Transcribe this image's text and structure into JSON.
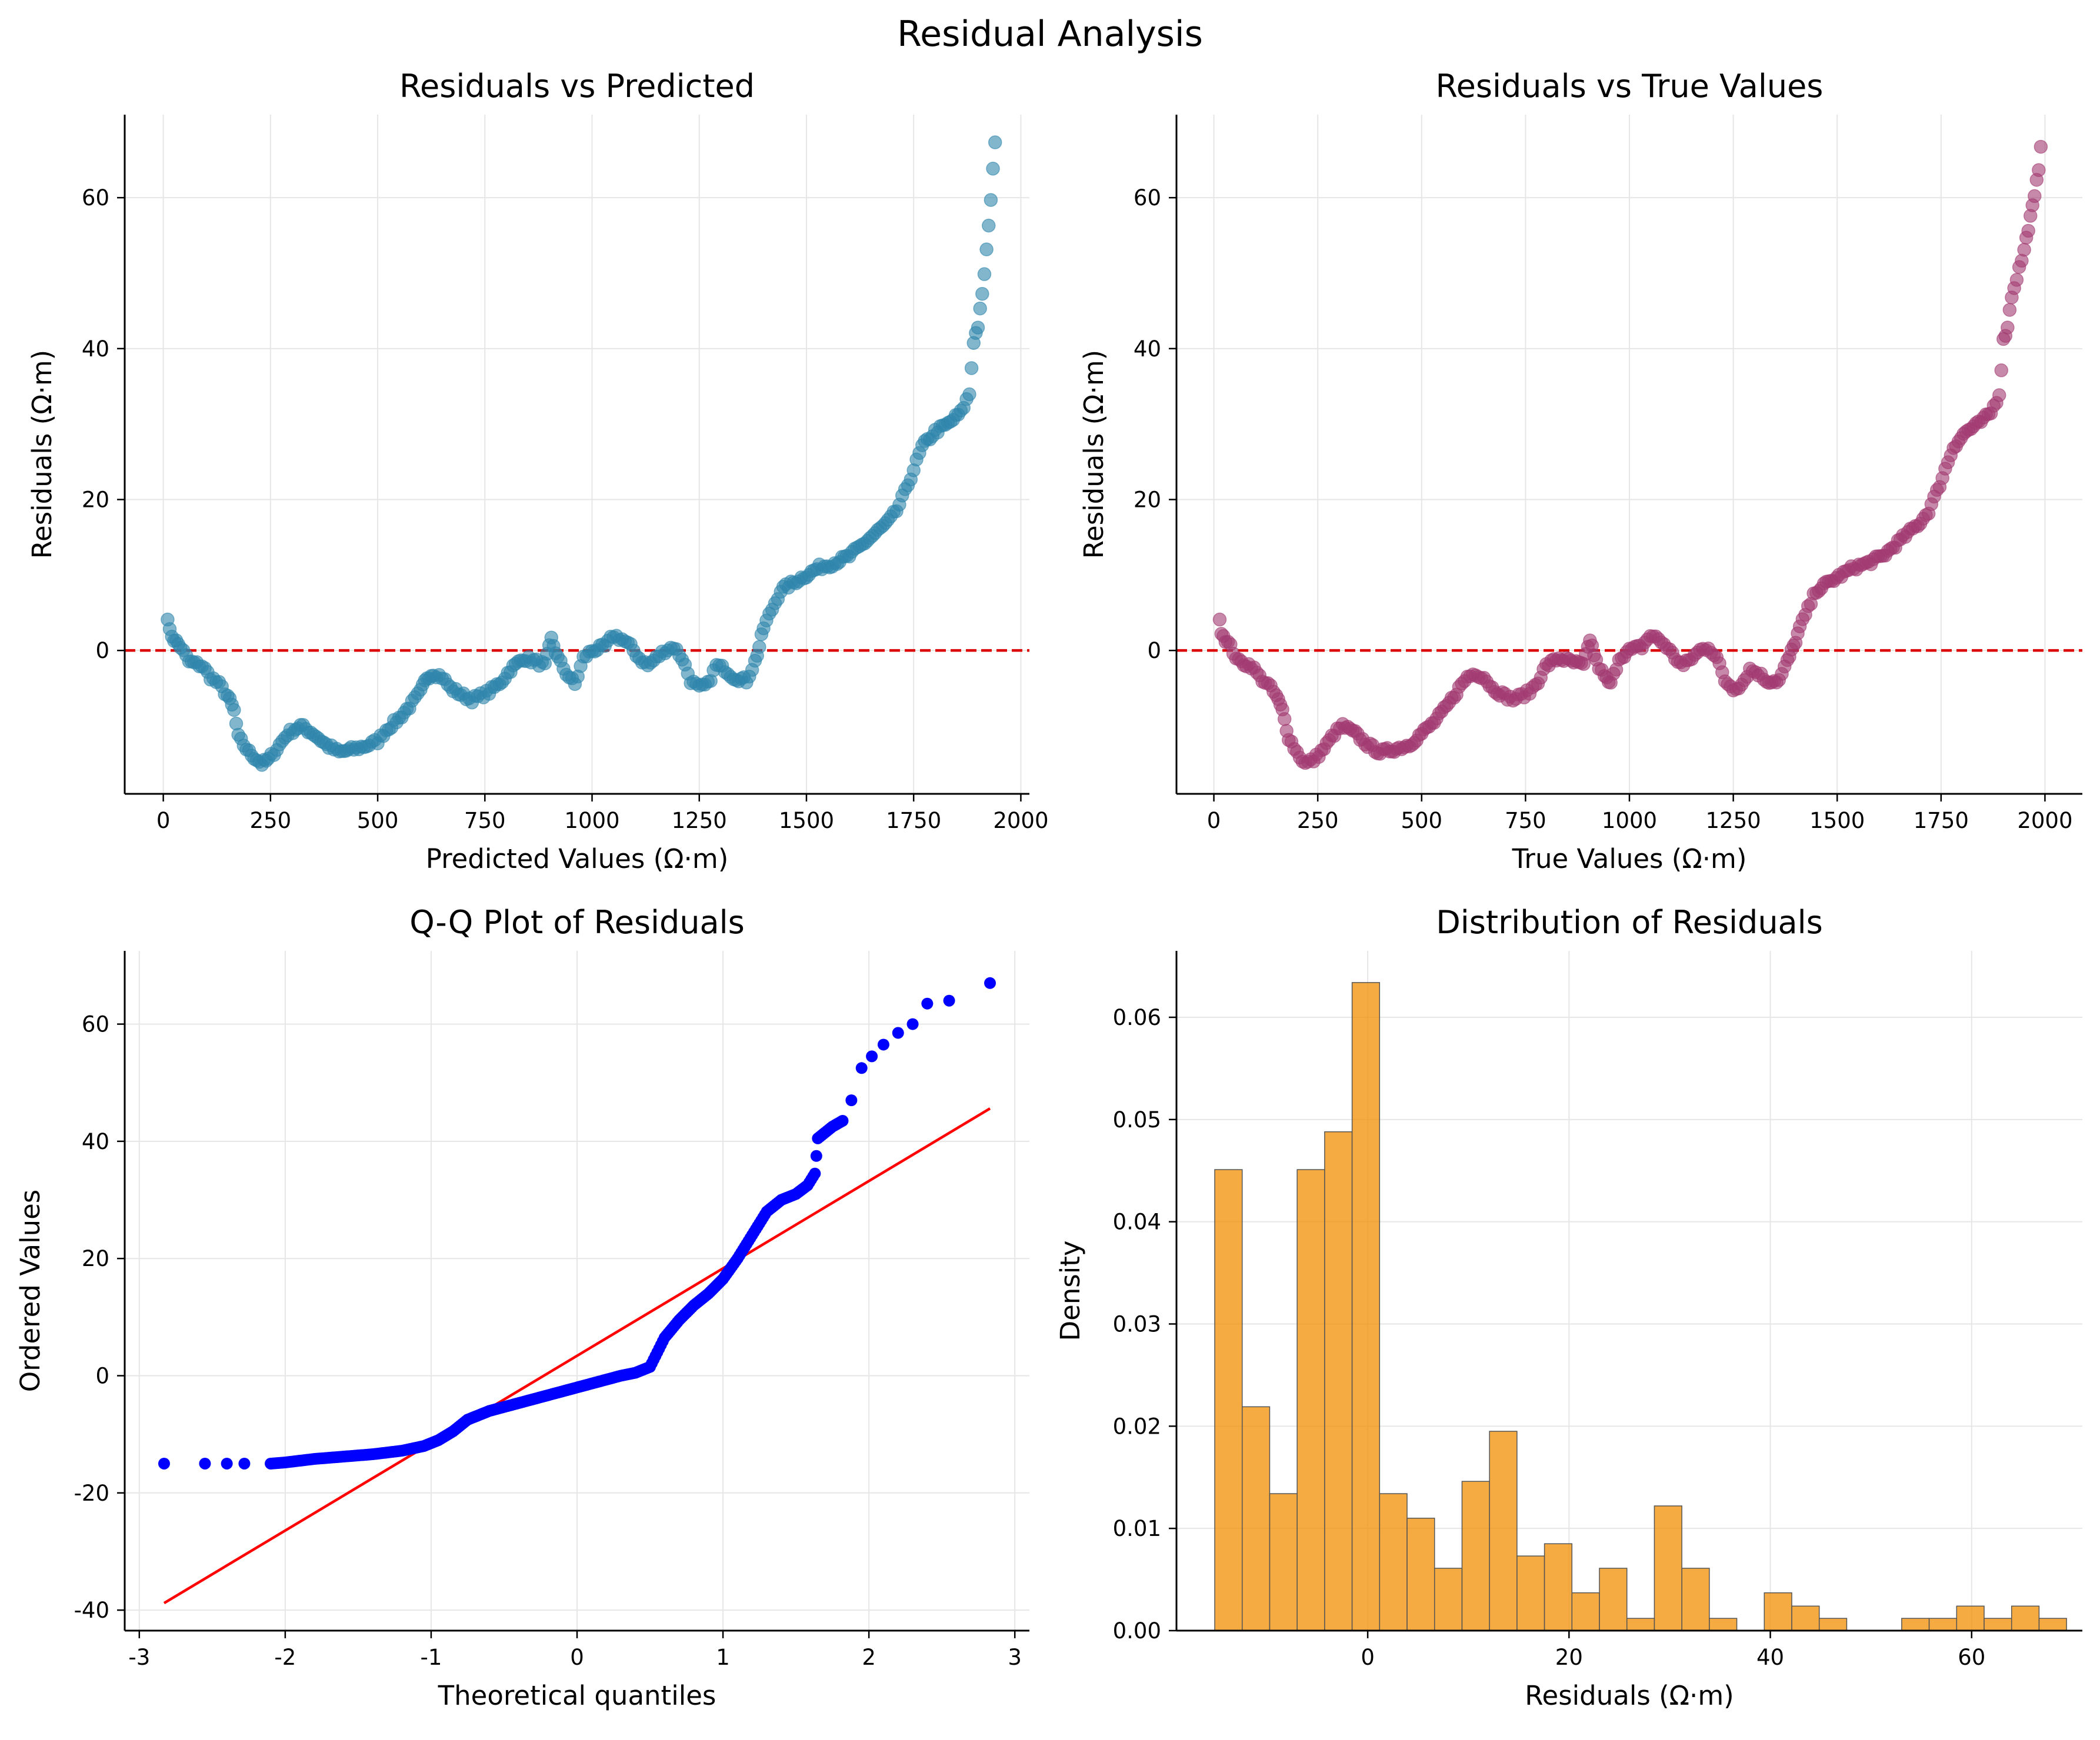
{
  "figure": {
    "title": "Residual Analysis"
  },
  "colors": {
    "scatter_pred": "#2e86ab",
    "scatter_true": "#a23b72",
    "qq_points": "#0000ff",
    "qq_line": "#ff0000",
    "hist": "#f18f01",
    "zero_line": "#dd0000"
  },
  "chart_data": [
    {
      "id": "pred",
      "type": "scatter",
      "title": "Residuals vs Predicted",
      "xlabel": "Predicted Values (Ω·m)",
      "ylabel": "Residuals (Ω·m)",
      "xlim": [
        -90,
        2020
      ],
      "ylim": [
        -19,
        71
      ],
      "xticks": [
        0,
        250,
        500,
        750,
        1000,
        1250,
        1500,
        1750,
        2000
      ],
      "yticks": [
        0,
        20,
        40,
        60
      ],
      "grid": true,
      "reference_line": {
        "y": 0,
        "style": "dashed"
      },
      "curve": [
        [
          10,
          4.5
        ],
        [
          15,
          2.5
        ],
        [
          25,
          1.5
        ],
        [
          40,
          0.5
        ],
        [
          60,
          -1.5
        ],
        [
          90,
          -2
        ],
        [
          110,
          -3.5
        ],
        [
          130,
          -4.5
        ],
        [
          150,
          -6
        ],
        [
          165,
          -8
        ],
        [
          175,
          -11.5
        ],
        [
          200,
          -13.5
        ],
        [
          230,
          -15
        ],
        [
          245,
          -14.5
        ],
        [
          265,
          -13
        ],
        [
          290,
          -11
        ],
        [
          320,
          -10
        ],
        [
          350,
          -11
        ],
        [
          380,
          -12.5
        ],
        [
          410,
          -13.5
        ],
        [
          450,
          -13
        ],
        [
          480,
          -12.5
        ],
        [
          500,
          -12
        ],
        [
          520,
          -10.5
        ],
        [
          550,
          -9
        ],
        [
          580,
          -7
        ],
        [
          600,
          -5.5
        ],
        [
          615,
          -3.5
        ],
        [
          630,
          -3
        ],
        [
          650,
          -3.5
        ],
        [
          670,
          -5
        ],
        [
          700,
          -6
        ],
        [
          720,
          -6.5
        ],
        [
          740,
          -6
        ],
        [
          760,
          -5.5
        ],
        [
          790,
          -4
        ],
        [
          810,
          -2.5
        ],
        [
          840,
          -1
        ],
        [
          870,
          -1.5
        ],
        [
          890,
          -2
        ],
        [
          905,
          1.5
        ],
        [
          920,
          -1
        ],
        [
          940,
          -3
        ],
        [
          960,
          -4.5
        ],
        [
          980,
          -1
        ],
        [
          1000,
          0
        ],
        [
          1030,
          0.5
        ],
        [
          1050,
          2
        ],
        [
          1070,
          1.5
        ],
        [
          1090,
          0.5
        ],
        [
          1110,
          -1
        ],
        [
          1130,
          -2
        ],
        [
          1150,
          -1
        ],
        [
          1170,
          0
        ],
        [
          1190,
          0.5
        ],
        [
          1210,
          -1
        ],
        [
          1230,
          -4
        ],
        [
          1250,
          -5
        ],
        [
          1270,
          -4.5
        ],
        [
          1290,
          -2
        ],
        [
          1310,
          -2.5
        ],
        [
          1330,
          -3.5
        ],
        [
          1360,
          -4
        ],
        [
          1380,
          -1.5
        ],
        [
          1390,
          0.5
        ],
        [
          1400,
          3
        ],
        [
          1420,
          5.5
        ],
        [
          1440,
          8
        ],
        [
          1470,
          9
        ],
        [
          1500,
          10
        ],
        [
          1530,
          11
        ],
        [
          1560,
          11.5
        ],
        [
          1600,
          12.5
        ],
        [
          1630,
          14
        ],
        [
          1660,
          15.5
        ],
        [
          1690,
          17
        ],
        [
          1710,
          18.5
        ],
        [
          1730,
          21
        ],
        [
          1750,
          24
        ],
        [
          1770,
          27
        ],
        [
          1800,
          29
        ],
        [
          1830,
          30
        ],
        [
          1860,
          31.5
        ],
        [
          1880,
          34
        ],
        [
          1890,
          41
        ],
        [
          1900,
          43
        ],
        [
          1910,
          47
        ],
        [
          1920,
          53
        ],
        [
          1925,
          56
        ],
        [
          1930,
          60
        ],
        [
          1935,
          64
        ],
        [
          1940,
          67
        ]
      ],
      "note": "Scatter approximated as a dense sampling of the visible point cloud"
    },
    {
      "id": "true",
      "type": "scatter",
      "title": "Residuals vs True Values",
      "xlabel": "True Values (Ω·m)",
      "ylabel": "Residuals (Ω·m)",
      "xlim": [
        -90,
        2090
      ],
      "ylim": [
        -19,
        71
      ],
      "xticks": [
        0,
        250,
        500,
        750,
        1000,
        1250,
        1500,
        1750,
        2000
      ],
      "yticks": [
        0,
        20,
        40,
        60
      ],
      "grid": true,
      "reference_line": {
        "y": 0,
        "style": "dashed"
      },
      "curve": [
        [
          14,
          4.5
        ],
        [
          18,
          2.5
        ],
        [
          28,
          1.5
        ],
        [
          40,
          0.5
        ],
        [
          60,
          -1.5
        ],
        [
          90,
          -2
        ],
        [
          110,
          -3.5
        ],
        [
          130,
          -4.5
        ],
        [
          150,
          -6
        ],
        [
          165,
          -8
        ],
        [
          180,
          -11.5
        ],
        [
          200,
          -13.5
        ],
        [
          220,
          -15
        ],
        [
          240,
          -14.5
        ],
        [
          265,
          -13
        ],
        [
          290,
          -11
        ],
        [
          310,
          -10
        ],
        [
          340,
          -11
        ],
        [
          370,
          -12.5
        ],
        [
          400,
          -13.5
        ],
        [
          440,
          -13
        ],
        [
          470,
          -12.5
        ],
        [
          500,
          -11
        ],
        [
          530,
          -9.5
        ],
        [
          560,
          -7.5
        ],
        [
          590,
          -5
        ],
        [
          610,
          -3.5
        ],
        [
          630,
          -3
        ],
        [
          650,
          -3.5
        ],
        [
          670,
          -5
        ],
        [
          700,
          -6
        ],
        [
          720,
          -6.5
        ],
        [
          740,
          -6
        ],
        [
          760,
          -5.5
        ],
        [
          780,
          -4
        ],
        [
          800,
          -2
        ],
        [
          830,
          -1
        ],
        [
          860,
          -1.5
        ],
        [
          890,
          -2
        ],
        [
          905,
          1.5
        ],
        [
          920,
          -1.5
        ],
        [
          940,
          -3.5
        ],
        [
          955,
          -4.5
        ],
        [
          975,
          -1
        ],
        [
          1000,
          0
        ],
        [
          1030,
          0.5
        ],
        [
          1050,
          2
        ],
        [
          1070,
          1.5
        ],
        [
          1090,
          0.5
        ],
        [
          1110,
          -1
        ],
        [
          1130,
          -2
        ],
        [
          1150,
          -1
        ],
        [
          1170,
          0
        ],
        [
          1190,
          0.5
        ],
        [
          1210,
          -1
        ],
        [
          1230,
          -4
        ],
        [
          1250,
          -5
        ],
        [
          1270,
          -4.5
        ],
        [
          1290,
          -2.5
        ],
        [
          1310,
          -3
        ],
        [
          1330,
          -4
        ],
        [
          1360,
          -4
        ],
        [
          1380,
          -1.5
        ],
        [
          1395,
          0.5
        ],
        [
          1410,
          3
        ],
        [
          1430,
          5.5
        ],
        [
          1450,
          8
        ],
        [
          1480,
          9
        ],
        [
          1510,
          10
        ],
        [
          1540,
          11
        ],
        [
          1570,
          11.5
        ],
        [
          1610,
          12.5
        ],
        [
          1640,
          14
        ],
        [
          1670,
          15.5
        ],
        [
          1700,
          17
        ],
        [
          1720,
          18.5
        ],
        [
          1740,
          21
        ],
        [
          1760,
          24
        ],
        [
          1780,
          27
        ],
        [
          1810,
          29
        ],
        [
          1840,
          30
        ],
        [
          1870,
          31.5
        ],
        [
          1890,
          34
        ],
        [
          1900,
          41
        ],
        [
          1910,
          43
        ],
        [
          1920,
          47
        ],
        [
          1950,
          53
        ],
        [
          1960,
          56
        ],
        [
          1975,
          60
        ],
        [
          1985,
          64
        ],
        [
          1990,
          67
        ]
      ],
      "note": "Scatter approximated as a dense sampling of the visible point cloud"
    },
    {
      "id": "qq",
      "type": "scatter",
      "title": "Q-Q Plot of Residuals",
      "xlabel": "Theoretical quantiles",
      "ylabel": "Ordered Values",
      "xlim": [
        -3.1,
        3.1
      ],
      "ylim": [
        -43.5,
        72.5
      ],
      "xticks": [
        -3,
        -2,
        -1,
        0,
        1,
        2,
        3
      ],
      "yticks": [
        -40,
        -20,
        0,
        20,
        40,
        60
      ],
      "grid": true,
      "fit_line": [
        [
          -2.83,
          -38.8
        ],
        [
          2.83,
          45.6
        ]
      ],
      "curve": [
        [
          -2.83,
          -15
        ],
        [
          -2.5,
          -15
        ],
        [
          -2.3,
          -15
        ],
        [
          -2.1,
          -15
        ],
        [
          -2,
          -14.8
        ],
        [
          -1.8,
          -14.2
        ],
        [
          -1.6,
          -13.8
        ],
        [
          -1.4,
          -13.4
        ],
        [
          -1.2,
          -12.8
        ],
        [
          -1.05,
          -12
        ],
        [
          -0.95,
          -11
        ],
        [
          -0.85,
          -9.5
        ],
        [
          -0.75,
          -7.5
        ],
        [
          -0.6,
          -6
        ],
        [
          -0.45,
          -5
        ],
        [
          -0.3,
          -4
        ],
        [
          -0.15,
          -3
        ],
        [
          0,
          -2
        ],
        [
          0.15,
          -1
        ],
        [
          0.3,
          0
        ],
        [
          0.4,
          0.5
        ],
        [
          0.5,
          1.5
        ],
        [
          0.55,
          4
        ],
        [
          0.6,
          6.5
        ],
        [
          0.7,
          9.5
        ],
        [
          0.8,
          12
        ],
        [
          0.9,
          14
        ],
        [
          1.0,
          16.5
        ],
        [
          1.1,
          20
        ],
        [
          1.2,
          24
        ],
        [
          1.3,
          28
        ],
        [
          1.4,
          30
        ],
        [
          1.5,
          31
        ],
        [
          1.58,
          32.5
        ],
        [
          1.63,
          34.5
        ],
        [
          1.65,
          40.5
        ],
        [
          1.75,
          42.5
        ],
        [
          1.82,
          43.5
        ],
        [
          1.88,
          47
        ],
        [
          1.95,
          52.5
        ],
        [
          2.0,
          54.5
        ],
        [
          2.1,
          56.5
        ],
        [
          2.2,
          58.5
        ],
        [
          2.3,
          60
        ],
        [
          2.45,
          63.5
        ],
        [
          2.6,
          64
        ],
        [
          2.83,
          67
        ]
      ],
      "isolated_points": [
        [
          -2.83,
          -15
        ],
        [
          -2.55,
          -15
        ],
        [
          -2.4,
          -15
        ],
        [
          -2.28,
          -15
        ],
        [
          1.88,
          47
        ],
        [
          1.95,
          52.5
        ],
        [
          2.02,
          54.5
        ],
        [
          2.1,
          56.5
        ],
        [
          2.2,
          58.5
        ],
        [
          2.3,
          60
        ],
        [
          2.4,
          63.5
        ],
        [
          2.55,
          64
        ],
        [
          2.83,
          67
        ]
      ]
    },
    {
      "id": "hist",
      "type": "bar",
      "title": "Distribution of Residuals",
      "xlabel": "Residuals (Ω·m)",
      "ylabel": "Density",
      "xlim": [
        -19,
        71
      ],
      "ylim": [
        0,
        0.0665
      ],
      "xticks": [
        0,
        20,
        40,
        60
      ],
      "yticks": [
        0.0,
        0.01,
        0.02,
        0.03,
        0.04,
        0.05,
        0.06
      ],
      "ytick_labels": [
        "0.00",
        "0.01",
        "0.02",
        "0.03",
        "0.04",
        "0.05",
        "0.06"
      ],
      "grid": true,
      "bin_start": -15.2,
      "bin_width": 2.73,
      "values": [
        0.0451,
        0.0219,
        0.0134,
        0.0451,
        0.0488,
        0.0634,
        0.0134,
        0.011,
        0.0061,
        0.0146,
        0.0195,
        0.0073,
        0.0085,
        0.0037,
        0.0061,
        0.0012,
        0.0122,
        0.0061,
        0.0012,
        0.0,
        0.0037,
        0.0024,
        0.0012,
        0.0,
        0.0,
        0.0012,
        0.0012,
        0.0024,
        0.0012,
        0.0024,
        0.0012
      ]
    }
  ]
}
